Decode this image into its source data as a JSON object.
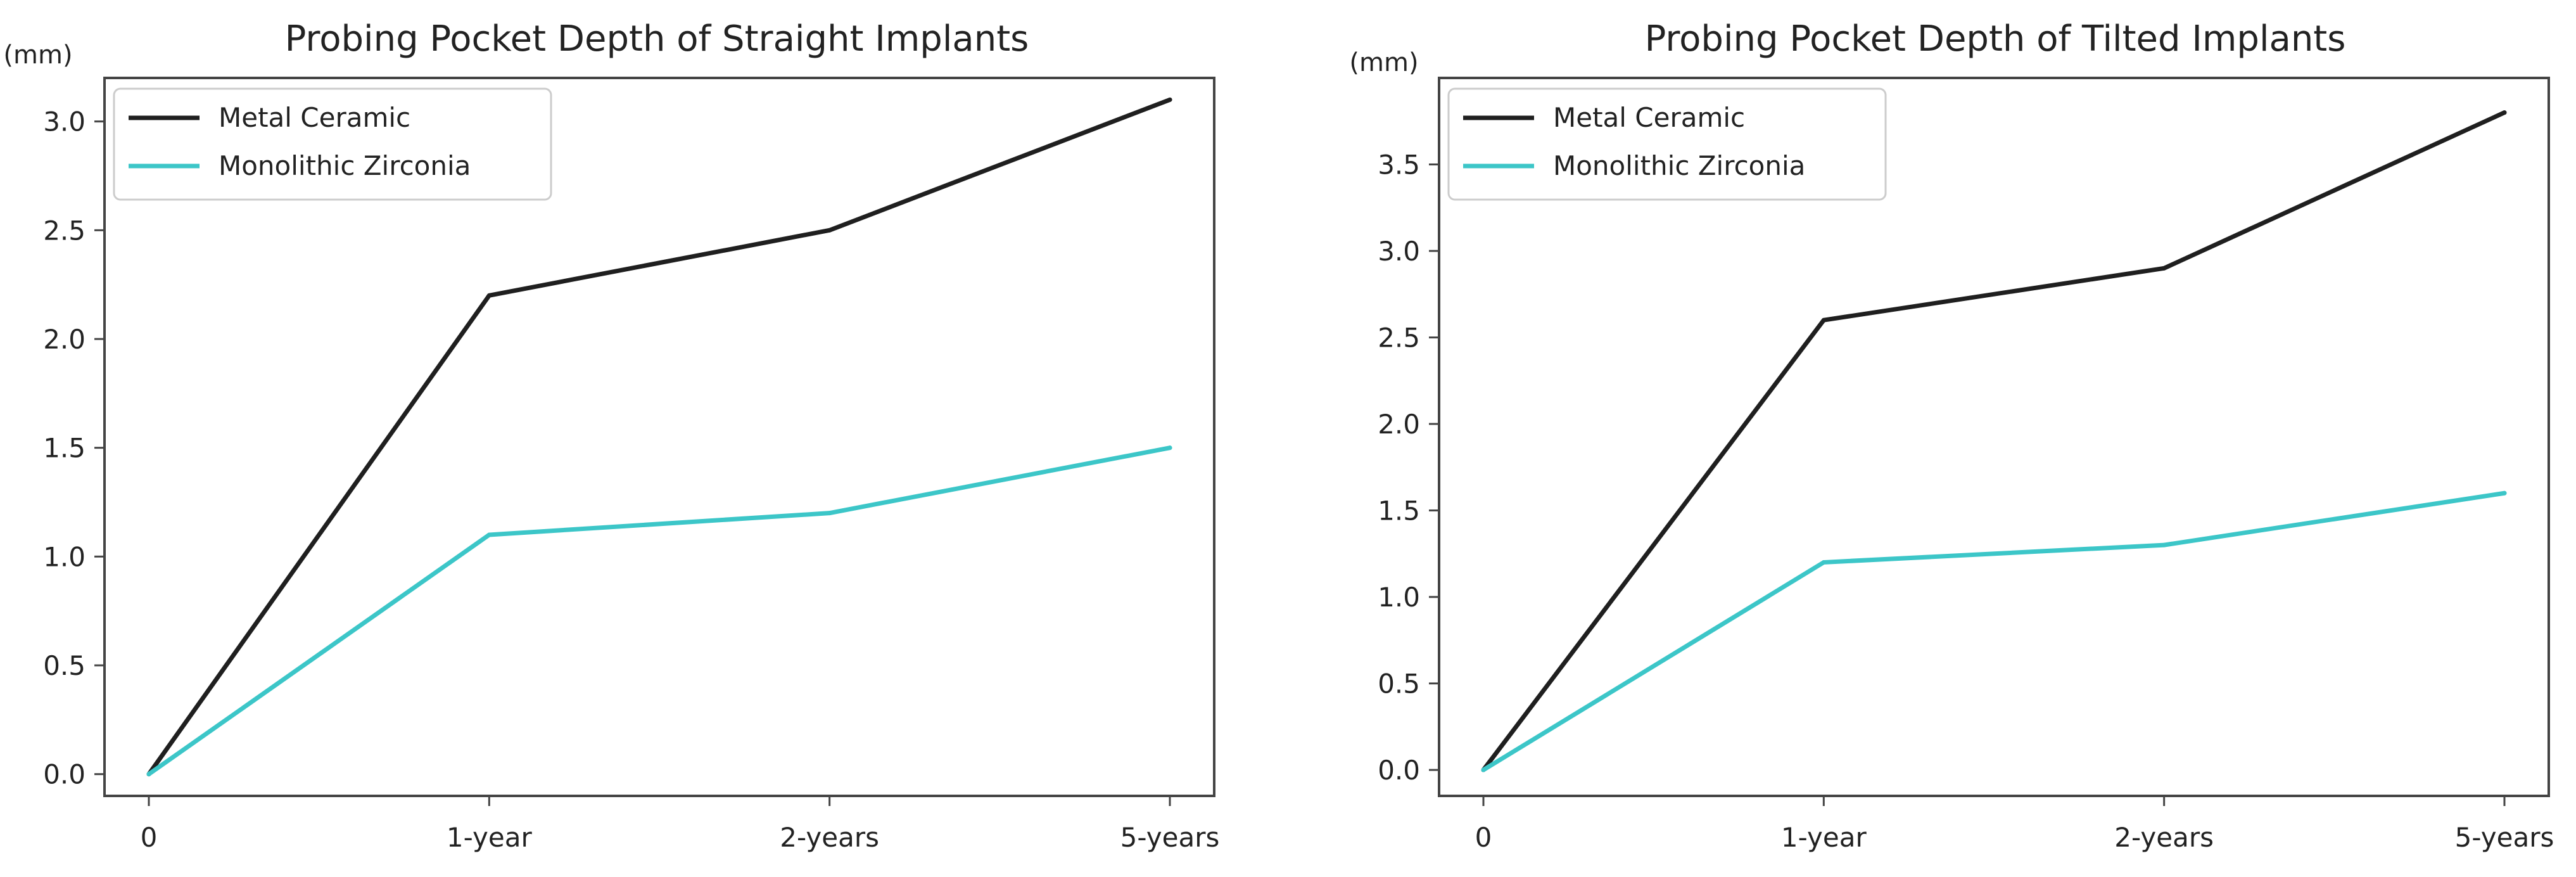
{
  "chart_data": [
    {
      "type": "line",
      "title": "Probing Pocket Depth of Straight Implants",
      "ylabel": "(mm)",
      "xlabel": "",
      "categories": [
        "0",
        "1-year",
        "2-years",
        "5-years"
      ],
      "ylim": [
        -0.1,
        3.2
      ],
      "yticks": [
        "0.0",
        "0.5",
        "1.0",
        "1.5",
        "2.0",
        "2.5",
        "3.0"
      ],
      "ytick_values": [
        0.0,
        0.5,
        1.0,
        1.5,
        2.0,
        2.5,
        3.0
      ],
      "legend_position": "top-left",
      "grid": false,
      "series": [
        {
          "name": "Metal Ceramic",
          "color": "#1f1f1f",
          "values": [
            0.0,
            2.2,
            2.5,
            3.1
          ]
        },
        {
          "name": "Monolithic Zirconia",
          "color": "#3cc6c8",
          "values": [
            0.0,
            1.1,
            1.2,
            1.5
          ]
        }
      ]
    },
    {
      "type": "line",
      "title": "Probing Pocket Depth of Tilted Implants",
      "ylabel": "(mm)",
      "xlabel": "",
      "categories": [
        "0",
        "1-year",
        "2-years",
        "5-years"
      ],
      "ylim": [
        -0.15,
        4.0
      ],
      "yticks": [
        "0.0",
        "0.5",
        "1.0",
        "1.5",
        "2.0",
        "2.5",
        "3.0",
        "3.5"
      ],
      "ytick_values": [
        0.0,
        0.5,
        1.0,
        1.5,
        2.0,
        2.5,
        3.0,
        3.5
      ],
      "legend_position": "top-left",
      "grid": false,
      "series": [
        {
          "name": "Metal Ceramic",
          "color": "#1f1f1f",
          "values": [
            0.0,
            2.6,
            2.9,
            3.8
          ]
        },
        {
          "name": "Monolithic Zirconia",
          "color": "#3cc6c8",
          "values": [
            0.0,
            1.2,
            1.3,
            1.6
          ]
        }
      ]
    }
  ]
}
